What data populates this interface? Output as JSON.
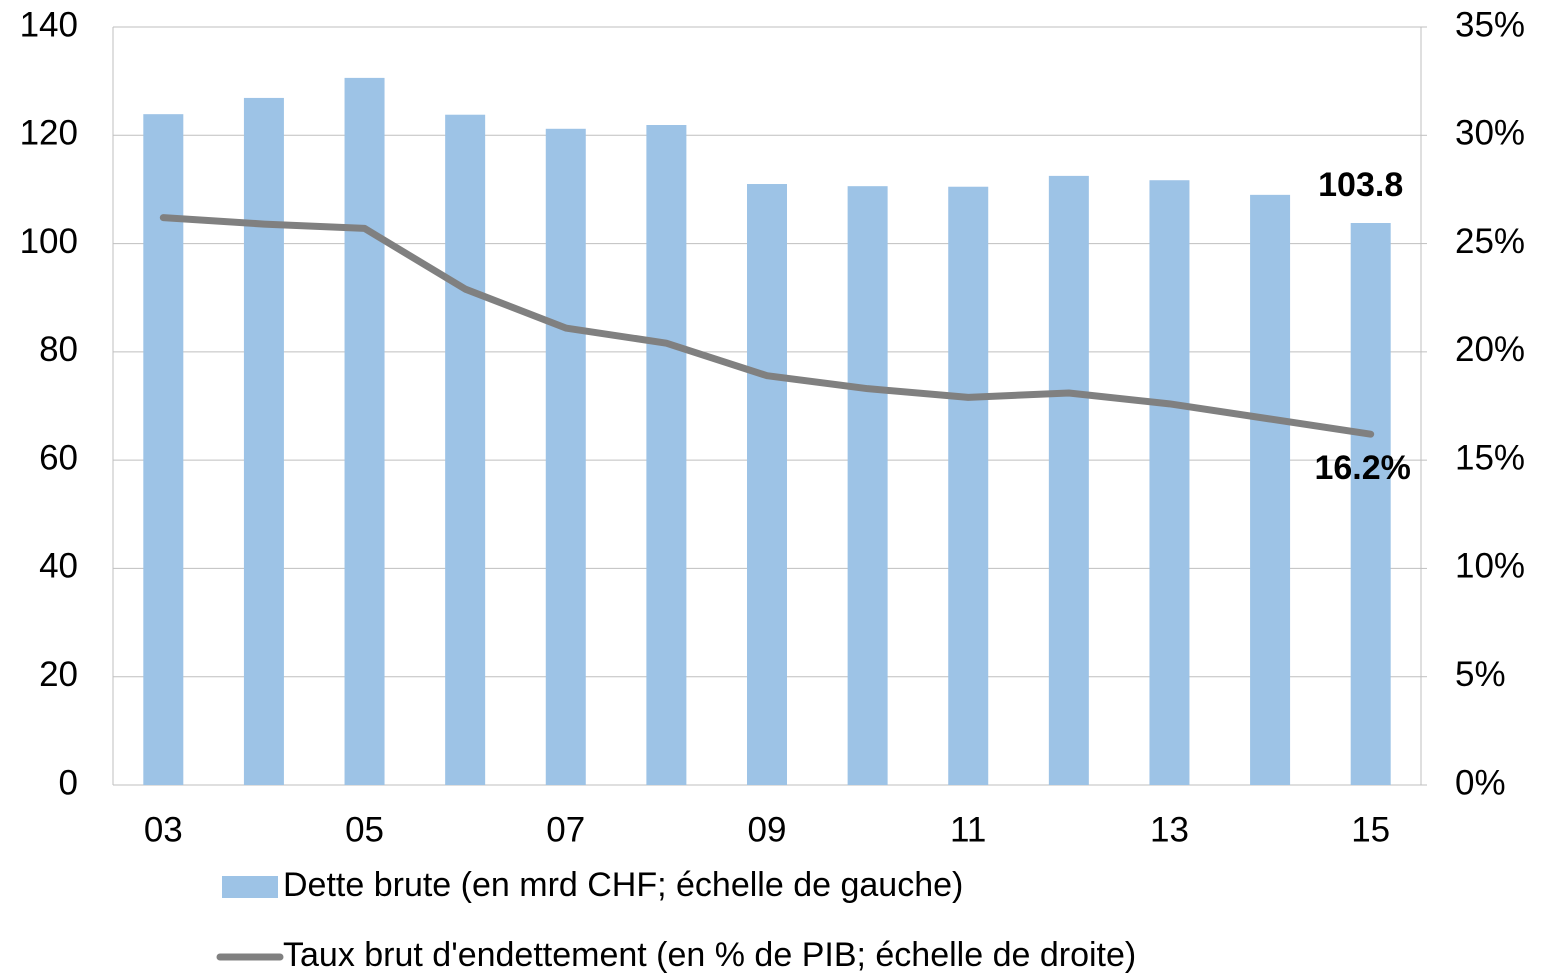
{
  "chart_data": {
    "type": "bar_line",
    "categories": [
      "03",
      null,
      "05",
      null,
      "07",
      null,
      "09",
      null,
      "11",
      null,
      "13",
      null,
      "15"
    ],
    "series": [
      {
        "name": "Dette brute (en mrd CHF; échelle de gauche)",
        "type": "bar",
        "color": "#9dc3e6",
        "axis": "y",
        "values": [
          123.9,
          126.9,
          130.6,
          123.8,
          121.2,
          121.9,
          111,
          110.6,
          110.5,
          112.5,
          111.7,
          109,
          103.8
        ],
        "value_labels": [
          null,
          null,
          null,
          null,
          null,
          null,
          null,
          null,
          null,
          null,
          null,
          null,
          "103.8"
        ]
      },
      {
        "name": "Taux brut d'endettement (en % de PIB; échelle de droite)",
        "type": "line",
        "color": "#808080",
        "axis": "y2",
        "values": [
          26.2,
          25.9,
          25.7,
          22.9,
          21.1,
          20.4,
          18.9,
          18.3,
          17.9,
          18.1,
          17.6,
          16.9,
          16.2
        ],
        "value_labels": [
          null,
          null,
          null,
          null,
          null,
          null,
          null,
          null,
          null,
          null,
          null,
          null,
          "16.2%"
        ]
      }
    ],
    "ylim": [
      0,
      140
    ],
    "yticks": [
      0,
      20,
      40,
      60,
      80,
      100,
      120,
      140
    ],
    "y2lim": [
      0,
      35
    ],
    "y2ticks": [
      {
        "value": 0,
        "label": "0%"
      },
      {
        "value": 5,
        "label": "5%"
      },
      {
        "value": 10,
        "label": "10%"
      },
      {
        "value": 15,
        "label": "15%"
      },
      {
        "value": 20,
        "label": "20%"
      },
      {
        "value": 25,
        "label": "25%"
      },
      {
        "value": 30,
        "label": "30%"
      },
      {
        "value": 35,
        "label": "35%"
      }
    ],
    "grid": true,
    "legend": "bottom"
  }
}
